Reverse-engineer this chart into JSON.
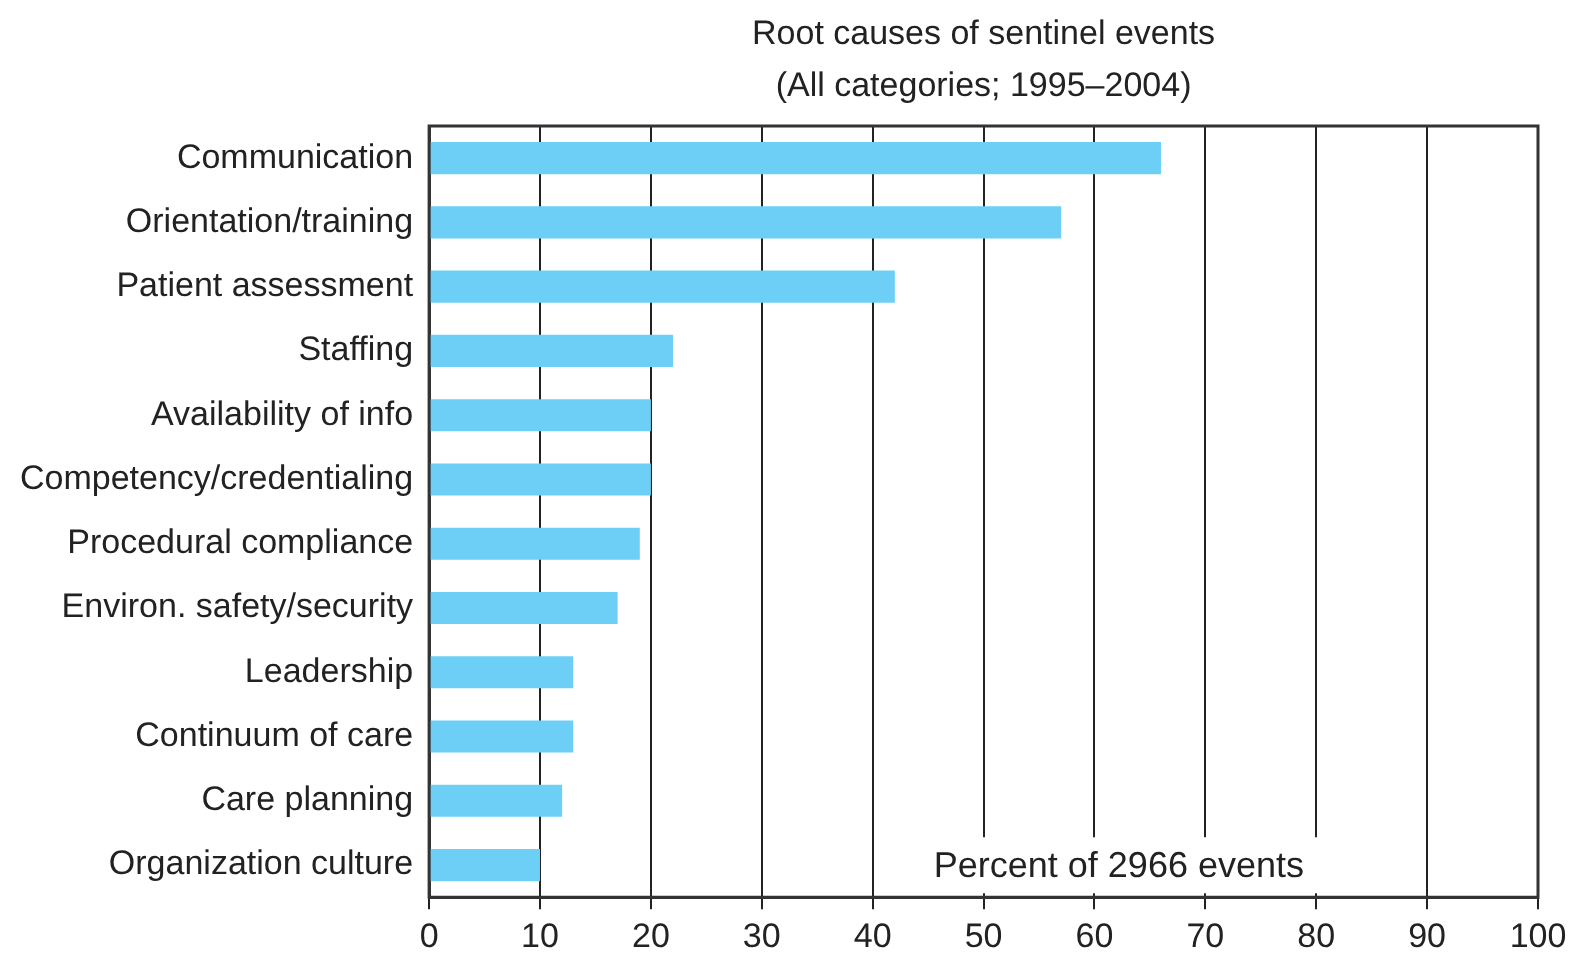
{
  "chart_data": {
    "type": "bar",
    "orientation": "horizontal",
    "title": "Root causes of sentinel events",
    "subtitle": "(All categories; 1995–2004)",
    "categories": [
      "Communication",
      "Orientation/training",
      "Patient assessment",
      "Staffing",
      "Availability of info",
      "Competency/credentialing",
      "Procedural compliance",
      "Environ. safety/security",
      "Leadership",
      "Continuum of care",
      "Care planning",
      "Organization culture"
    ],
    "values": [
      66,
      57,
      42,
      22,
      20,
      20,
      19,
      17,
      13,
      13,
      12,
      10
    ],
    "color": "#6dcff6",
    "xlim": [
      0,
      100
    ],
    "xticks": [
      0,
      10,
      20,
      30,
      40,
      50,
      60,
      70,
      80,
      90,
      100
    ],
    "grid": "x",
    "annotations": [
      "Percent of 2966 events"
    ]
  }
}
